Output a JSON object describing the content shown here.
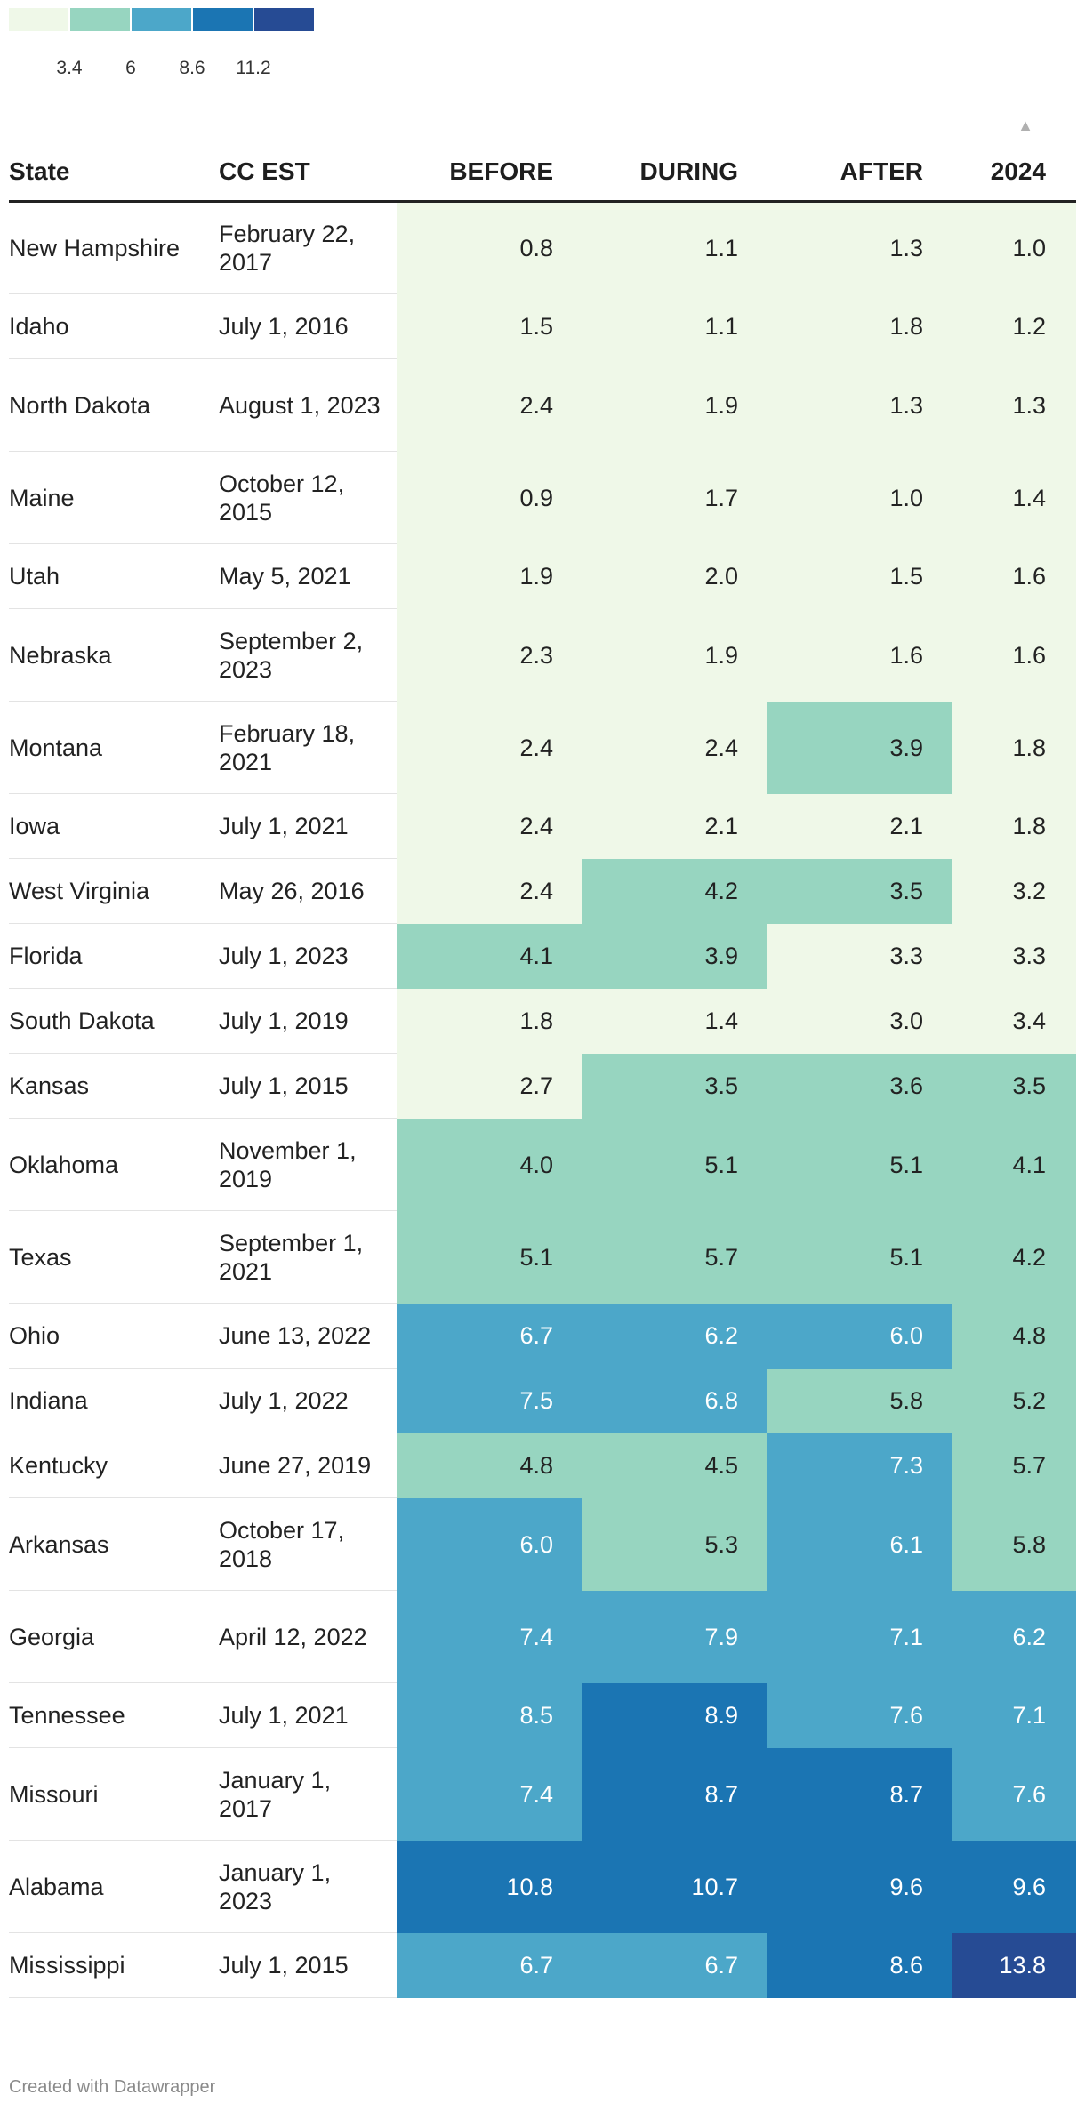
{
  "chart_data": {
    "type": "table",
    "title": "",
    "legend": {
      "colors": [
        "#eff8e8",
        "#97d5c0",
        "#4ca7c9",
        "#1b75b3",
        "#264b94"
      ],
      "ticks": [
        "3.4",
        "6",
        "8.6",
        "11.2"
      ],
      "min": 0.8,
      "max": 13.8
    },
    "columns": [
      "State",
      "CC EST",
      "BEFORE",
      "DURING",
      "AFTER",
      "2024"
    ],
    "sort_indicator": "▲",
    "rows": [
      {
        "state": "New Hampshire",
        "date": "February 22, 2017",
        "values": [
          "0.8",
          "1.1",
          "1.3",
          "1.0"
        ]
      },
      {
        "state": "Idaho",
        "date": "July 1, 2016",
        "values": [
          "1.5",
          "1.1",
          "1.8",
          "1.2"
        ]
      },
      {
        "state": "North Dakota",
        "date": "August 1, 2023",
        "values": [
          "2.4",
          "1.9",
          "1.3",
          "1.3"
        ]
      },
      {
        "state": "Maine",
        "date": "October 12, 2015",
        "values": [
          "0.9",
          "1.7",
          "1.0",
          "1.4"
        ]
      },
      {
        "state": "Utah",
        "date": "May 5, 2021",
        "values": [
          "1.9",
          "2.0",
          "1.5",
          "1.6"
        ]
      },
      {
        "state": "Nebraska",
        "date": "September 2, 2023",
        "values": [
          "2.3",
          "1.9",
          "1.6",
          "1.6"
        ]
      },
      {
        "state": "Montana",
        "date": "February 18, 2021",
        "values": [
          "2.4",
          "2.4",
          "3.9",
          "1.8"
        ]
      },
      {
        "state": "Iowa",
        "date": "July 1, 2021",
        "values": [
          "2.4",
          "2.1",
          "2.1",
          "1.8"
        ]
      },
      {
        "state": "West Virginia",
        "date": "May 26, 2016",
        "values": [
          "2.4",
          "4.2",
          "3.5",
          "3.2"
        ]
      },
      {
        "state": "Florida",
        "date": "July 1, 2023",
        "values": [
          "4.1",
          "3.9",
          "3.3",
          "3.3"
        ]
      },
      {
        "state": "South Dakota",
        "date": "July 1, 2019",
        "values": [
          "1.8",
          "1.4",
          "3.0",
          "3.4"
        ]
      },
      {
        "state": "Kansas",
        "date": "July 1, 2015",
        "values": [
          "2.7",
          "3.5",
          "3.6",
          "3.5"
        ]
      },
      {
        "state": "Oklahoma",
        "date": "November 1, 2019",
        "values": [
          "4.0",
          "5.1",
          "5.1",
          "4.1"
        ]
      },
      {
        "state": "Texas",
        "date": "September 1, 2021",
        "values": [
          "5.1",
          "5.7",
          "5.1",
          "4.2"
        ]
      },
      {
        "state": "Ohio",
        "date": "June 13, 2022",
        "values": [
          "6.7",
          "6.2",
          "6.0",
          "4.8"
        ]
      },
      {
        "state": "Indiana",
        "date": "July 1, 2022",
        "values": [
          "7.5",
          "6.8",
          "5.8",
          "5.2"
        ]
      },
      {
        "state": "Kentucky",
        "date": "June 27, 2019",
        "values": [
          "4.8",
          "4.5",
          "7.3",
          "5.7"
        ]
      },
      {
        "state": "Arkansas",
        "date": "October 17, 2018",
        "values": [
          "6.0",
          "5.3",
          "6.1",
          "5.8"
        ]
      },
      {
        "state": "Georgia",
        "date": "April 12, 2022",
        "values": [
          "7.4",
          "7.9",
          "7.1",
          "6.2"
        ]
      },
      {
        "state": "Tennessee",
        "date": "July 1, 2021",
        "values": [
          "8.5",
          "8.9",
          "7.6",
          "7.1"
        ]
      },
      {
        "state": "Missouri",
        "date": "January 1, 2017",
        "values": [
          "7.4",
          "8.7",
          "8.7",
          "7.6"
        ]
      },
      {
        "state": "Alabama",
        "date": "January 1, 2023",
        "values": [
          "10.8",
          "10.7",
          "9.6",
          "9.6"
        ]
      },
      {
        "state": "Mississippi",
        "date": "July 1, 2015",
        "values": [
          "6.7",
          "6.7",
          "8.6",
          "13.8"
        ]
      }
    ]
  },
  "footer": "Created with Datawrapper"
}
